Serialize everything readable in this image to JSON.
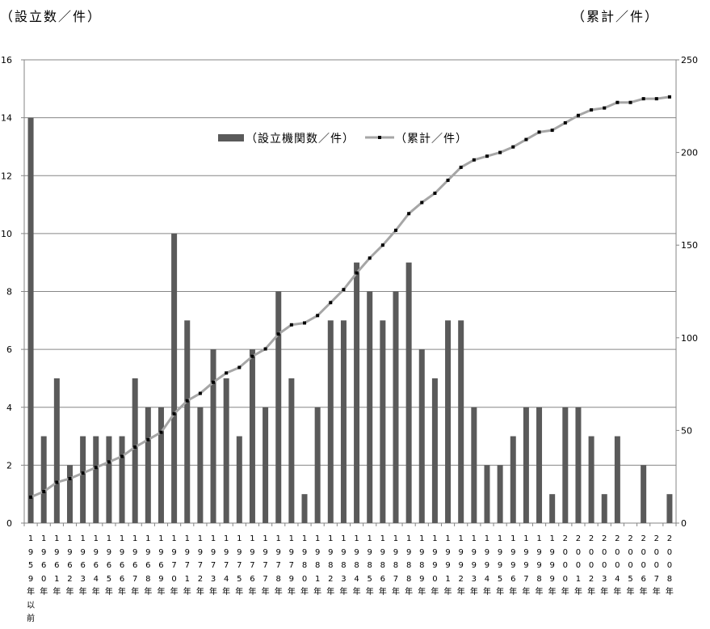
{
  "chart_data": {
    "type": "bar",
    "ylabel_left": "（設立数／件）",
    "ylabel_right": "（累計／件）",
    "categories": [
      "1959年以前",
      "1960年",
      "1961年",
      "1962年",
      "1963年",
      "1964年",
      "1965年",
      "1966年",
      "1967年",
      "1968年",
      "1969年",
      "1970年",
      "1971年",
      "1972年",
      "1973年",
      "1974年",
      "1975年",
      "1976年",
      "1977年",
      "1978年",
      "1979年",
      "1980年",
      "1981年",
      "1982年",
      "1983年",
      "1984年",
      "1985年",
      "1986年",
      "1987年",
      "1988年",
      "1989年",
      "1990年",
      "1991年",
      "1992年",
      "1993年",
      "1994年",
      "1995年",
      "1996年",
      "1997年",
      "1998年",
      "1999年",
      "2000年",
      "2001年",
      "2002年",
      "2003年",
      "2004年",
      "2005年",
      "2006年",
      "2007年",
      "2008年"
    ],
    "series": [
      {
        "name": "（設立機関数／件）",
        "type": "bar",
        "axis": "left",
        "values": [
          14,
          3,
          5,
          2,
          3,
          3,
          3,
          3,
          5,
          4,
          4,
          10,
          7,
          4,
          6,
          5,
          3,
          6,
          4,
          8,
          5,
          1,
          4,
          7,
          7,
          9,
          8,
          7,
          8,
          9,
          6,
          5,
          7,
          7,
          4,
          2,
          2,
          3,
          4,
          4,
          1,
          4,
          4,
          3,
          1,
          3,
          0,
          2,
          0,
          1
        ]
      },
      {
        "name": "（累計／件）",
        "type": "line",
        "axis": "right",
        "values": [
          14,
          17,
          22,
          24,
          27,
          30,
          33,
          36,
          41,
          45,
          49,
          59,
          66,
          70,
          76,
          81,
          84,
          90,
          94,
          102,
          107,
          108,
          112,
          119,
          126,
          135,
          143,
          150,
          158,
          167,
          173,
          178,
          185,
          192,
          196,
          198,
          200,
          203,
          207,
          211,
          212,
          216,
          220,
          223,
          224,
          227,
          227,
          229,
          229,
          230
        ]
      }
    ],
    "y_left": {
      "range": [
        0,
        16
      ],
      "ticks": [
        0,
        2,
        4,
        6,
        8,
        10,
        12,
        14,
        16
      ]
    },
    "y_right": {
      "range": [
        0,
        250
      ],
      "ticks": [
        0,
        50,
        100,
        150,
        200,
        250
      ]
    },
    "grid": true,
    "legend": "inside-top-center",
    "colors": {
      "bar": "#5a5a5a",
      "line": "#a6a6a6",
      "marker": "#000000",
      "grid": "#868686"
    }
  }
}
